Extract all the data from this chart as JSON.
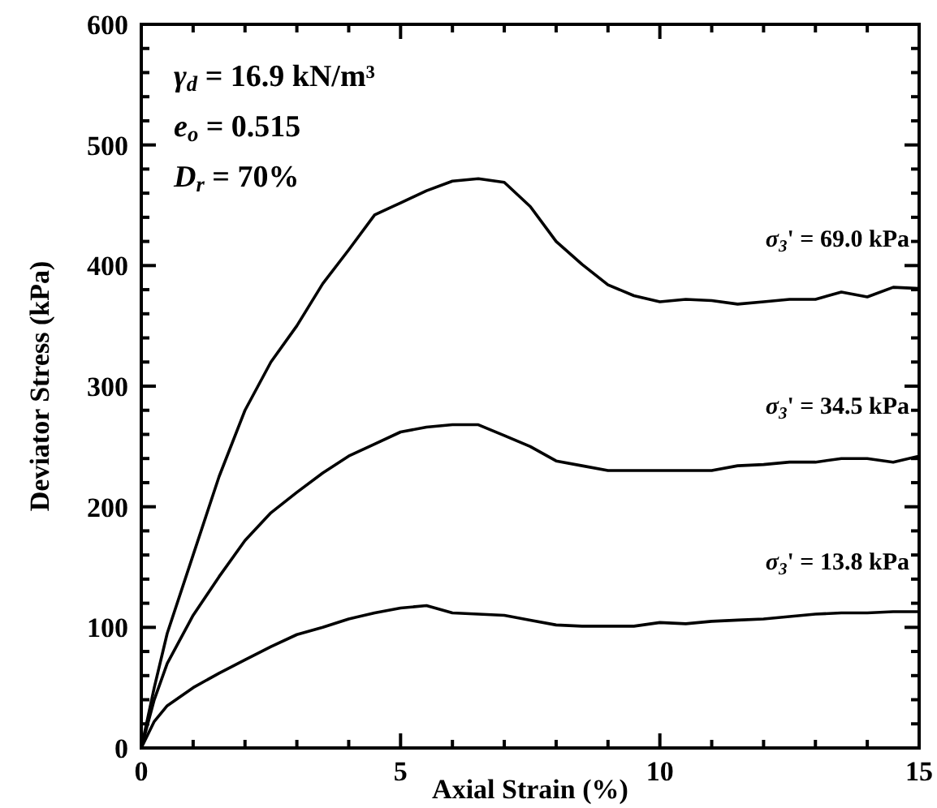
{
  "chart_data": {
    "type": "line",
    "xlabel": "Axial Strain (%)",
    "ylabel": "Deviator Stress (kPa)",
    "x": [
      0,
      0.25,
      0.5,
      1,
      1.5,
      2,
      2.5,
      3,
      3.5,
      4,
      4.5,
      5,
      5.5,
      6,
      6.5,
      7,
      7.5,
      8,
      8.5,
      9,
      9.5,
      10,
      10.5,
      11,
      11.5,
      12,
      12.5,
      13,
      13.5,
      14,
      14.5,
      15
    ],
    "series": [
      {
        "name": "σ$_{3}$' = 69.0 kPa",
        "color": "#000000",
        "values": [
          0,
          50,
          95,
          160,
          225,
          280,
          320,
          350,
          385,
          413,
          442,
          452,
          462,
          470,
          472,
          469,
          449,
          420,
          401,
          384,
          375,
          370,
          372,
          371,
          368,
          370,
          372,
          372,
          378,
          374,
          382,
          381
        ]
      },
      {
        "name": "σ$_{3}$' = 34.5 kPa",
        "color": "#000000",
        "values": [
          0,
          40,
          70,
          110,
          142,
          172,
          195,
          212,
          228,
          242,
          252,
          262,
          266,
          268,
          268,
          259,
          250,
          238,
          234,
          230,
          230,
          230,
          230,
          230,
          234,
          235,
          237,
          237,
          240,
          240,
          237,
          242
        ]
      },
      {
        "name": "σ$_{3}$' = 13.8 kPa",
        "color": "#000000",
        "values": [
          0,
          22,
          35,
          50,
          62,
          73,
          84,
          94,
          100,
          107,
          112,
          116,
          118,
          112,
          111,
          110,
          106,
          102,
          101,
          101,
          101,
          104,
          103,
          105,
          106,
          107,
          109,
          111,
          112,
          112,
          113,
          113
        ]
      }
    ],
    "xlim": [
      0,
      15
    ],
    "ylim": [
      0,
      600
    ],
    "xticks": [
      0,
      {
        "value": 1,
        "label": null
      },
      {
        "value": 2,
        "label": null
      },
      {
        "value": 3,
        "label": null
      },
      {
        "value": 4,
        "label": null
      },
      5,
      {
        "value": 6,
        "label": null
      },
      {
        "value": 7,
        "label": null
      },
      {
        "value": 8,
        "label": null
      },
      {
        "value": 9,
        "label": null
      },
      10,
      {
        "value": 11,
        "label": null
      },
      {
        "value": 12,
        "label": null
      },
      {
        "value": 13,
        "label": null
      },
      {
        "value": 14,
        "label": null
      },
      15
    ],
    "yticks": [
      0,
      {
        "value": 20,
        "label": null
      },
      {
        "value": 40,
        "label": null
      },
      {
        "value": 60,
        "label": null
      },
      {
        "value": 80,
        "label": null
      },
      100,
      {
        "value": 120,
        "label": null
      },
      {
        "value": 140,
        "label": null
      },
      {
        "value": 160,
        "label": null
      },
      {
        "value": 180,
        "label": null
      },
      200,
      {
        "value": 220,
        "label": null
      },
      {
        "value": 240,
        "label": null
      },
      {
        "value": 260,
        "label": null
      },
      {
        "value": 280,
        "label": null
      },
      300,
      {
        "value": 320,
        "label": null
      },
      {
        "value": 340,
        "label": null
      },
      {
        "value": 360,
        "label": null
      },
      {
        "value": 380,
        "label": null
      },
      400,
      {
        "value": 420,
        "label": null
      },
      {
        "value": 440,
        "label": null
      },
      {
        "value": 460,
        "label": null
      },
      {
        "value": 480,
        "label": null
      },
      500,
      {
        "value": 520,
        "label": null
      },
      {
        "value": 540,
        "label": null
      },
      {
        "value": 560,
        "label": null
      },
      {
        "value": 580,
        "label": null
      },
      600
    ],
    "annotations": [
      "γ$_{d}$ = 16.9 kN/m³",
      "e$_{o}$ = 0.515",
      "D$_{r}$ = 70%"
    ],
    "legend": "right",
    "grid": false,
    "marker": "none",
    "line_style": "solid"
  }
}
